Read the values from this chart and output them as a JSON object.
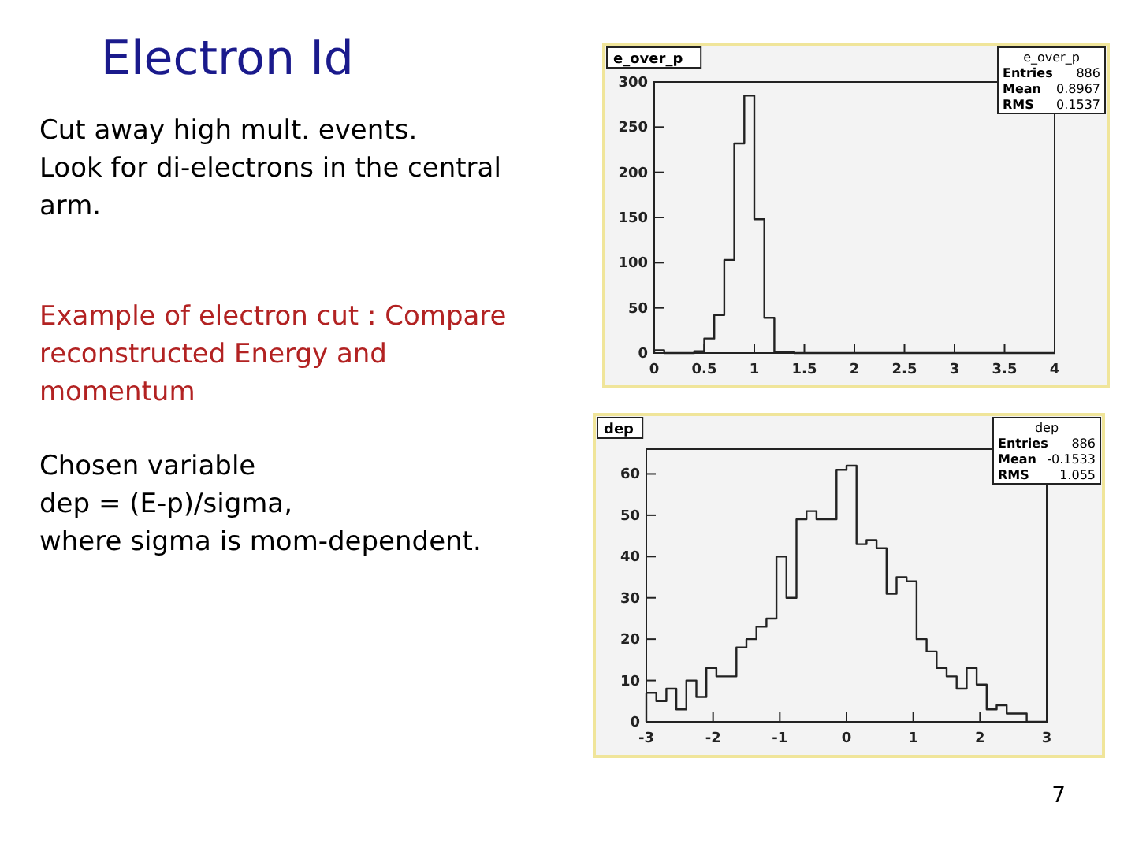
{
  "chart_data": [
    {
      "type": "other",
      "title": "Electron Id",
      "annotations": [
        "Cut away high mult. events.\nLook for di-electrons in the central\narm.",
        "Example of electron cut : Compare\nreconstructed Energy and\nmomentum",
        "Chosen variable\ndep = (E-p)/sigma,\nwhere sigma is mom-dependent.",
        "7"
      ]
    },
    {
      "type": "histogram",
      "title": "e_over_p",
      "color": "#222222",
      "bins": [
        0,
        0.1,
        0.2,
        0.3,
        0.4,
        0.5,
        0.6,
        0.7,
        0.8,
        0.9,
        1,
        1.1,
        1.2,
        1.3,
        1.4,
        1.5,
        1.6,
        1.7,
        1.8,
        1.9,
        2,
        2.1,
        2.2,
        2.3,
        2.4,
        2.5,
        2.6,
        2.7,
        2.8,
        2.9,
        3,
        3.1,
        3.2,
        3.3,
        3.4,
        3.5,
        3.6,
        3.7,
        3.8,
        3.9,
        4
      ],
      "values": [
        3,
        0,
        0,
        0,
        2,
        16,
        42,
        103,
        232,
        285,
        148,
        39,
        1,
        1,
        0,
        0,
        0,
        0,
        0,
        0,
        0,
        0,
        0,
        0,
        0,
        0,
        0,
        0,
        0,
        0,
        0,
        0,
        0,
        0,
        0,
        0,
        0,
        0,
        0,
        0
      ],
      "xlim": [
        0,
        4
      ],
      "xticks": [
        0,
        0.5,
        1,
        1.5,
        2,
        2.5,
        3,
        3.5,
        4
      ],
      "ylim": [
        0,
        300
      ],
      "yticks": [
        0,
        50,
        100,
        150,
        200,
        250,
        300
      ],
      "annotations": [
        "e_over_p",
        "Entries",
        "886",
        "Mean",
        "0.8967",
        "RMS",
        "0.1537"
      ]
    },
    {
      "type": "histogram",
      "title": "dep",
      "color": "#222222",
      "bins": [
        -3,
        -2.85,
        -2.7,
        -2.55,
        -2.4,
        -2.25,
        -2.1,
        -1.95,
        -1.8,
        -1.65,
        -1.5,
        -1.35,
        -1.2,
        -1.05,
        -0.9,
        -0.75,
        -0.6,
        -0.45,
        -0.3,
        -0.15,
        0,
        0.15,
        0.3,
        0.45,
        0.6,
        0.75,
        0.9,
        1.05,
        1.2,
        1.35,
        1.5,
        1.65,
        1.8,
        1.95,
        2.1,
        2.25,
        2.4,
        2.55,
        2.7,
        2.85,
        3
      ],
      "values": [
        7,
        5,
        8,
        3,
        10,
        6,
        13,
        11,
        11,
        18,
        20,
        23,
        25,
        40,
        30,
        49,
        51,
        49,
        49,
        61,
        62,
        43,
        44,
        42,
        31,
        35,
        34,
        20,
        17,
        13,
        11,
        8,
        13,
        9,
        3,
        4,
        2,
        2,
        0,
        0
      ],
      "xlim": [
        -3,
        3
      ],
      "xticks": [
        -3,
        -2,
        -1,
        0,
        1,
        2,
        3
      ],
      "ylim": [
        0,
        66
      ],
      "yticks": [
        0,
        10,
        20,
        30,
        40,
        50,
        60
      ],
      "annotations": [
        "dep",
        "Entries",
        "886",
        "Mean",
        "-0.1533",
        "RMS",
        "1.055"
      ]
    }
  ]
}
